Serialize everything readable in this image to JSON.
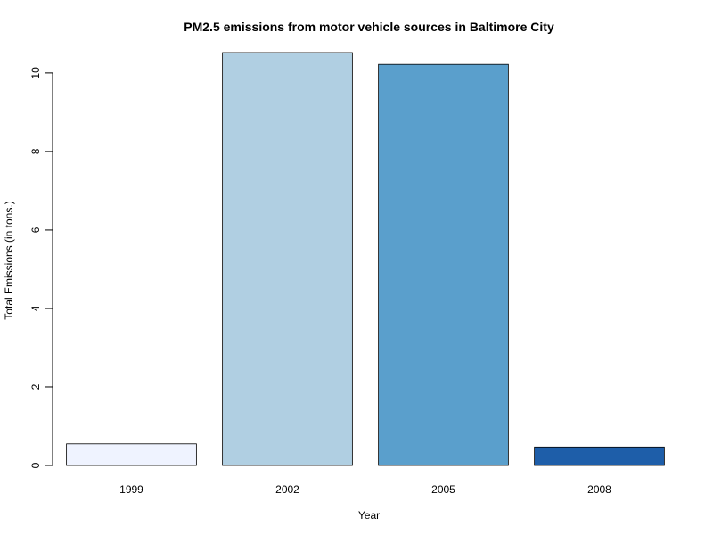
{
  "chart_data": {
    "type": "bar",
    "title": "PM2.5 emissions from motor vehicle sources in Baltimore City",
    "xlabel": "Year",
    "ylabel": "Total Emissions (in tons.)",
    "categories": [
      "1999",
      "2002",
      "2005",
      "2008"
    ],
    "values": [
      0.55,
      10.52,
      10.22,
      0.47
    ],
    "ylim": [
      0,
      10.52
    ],
    "yticks": [
      0,
      2,
      4,
      6,
      8,
      10
    ],
    "ytick_labels": [
      "0",
      "2",
      "4",
      "6",
      "8",
      "10"
    ],
    "grid": false,
    "legend": "none",
    "bar_colors": [
      "#eff3ff",
      "#b0cfe2",
      "#5a9fcc",
      "#1e5ea9"
    ],
    "bar_border_color": "#000000"
  }
}
